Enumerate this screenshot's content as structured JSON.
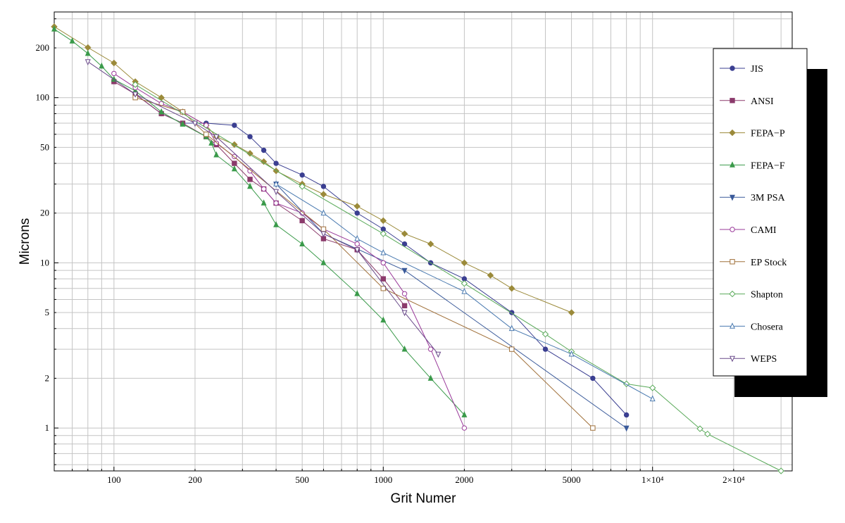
{
  "chart_data": {
    "type": "line",
    "title": "",
    "xlabel": "Grit Numer",
    "ylabel": "Microns",
    "x_scale": "log",
    "y_scale": "log",
    "xlim": [
      60,
      33000
    ],
    "ylim": [
      0.55,
      330
    ],
    "grid": true,
    "legend_position": "right",
    "x_tick_labels": [
      {
        "value": 100,
        "label": "100"
      },
      {
        "value": 200,
        "label": "200"
      },
      {
        "value": 500,
        "label": "500"
      },
      {
        "value": 1000,
        "label": "1000"
      },
      {
        "value": 2000,
        "label": "2000"
      },
      {
        "value": 5000,
        "label": "5000"
      },
      {
        "value": 10000,
        "label": "1×10⁴"
      },
      {
        "value": 20000,
        "label": "2×10⁴"
      }
    ],
    "y_tick_labels": [
      {
        "value": 1,
        "label": "1"
      },
      {
        "value": 2,
        "label": "2"
      },
      {
        "value": 5,
        "label": "5"
      },
      {
        "value": 10,
        "label": "10"
      },
      {
        "value": 20,
        "label": "20"
      },
      {
        "value": 50,
        "label": "50"
      },
      {
        "value": 100,
        "label": "100"
      },
      {
        "value": 200,
        "label": "200"
      }
    ],
    "series": [
      {
        "name": "JIS",
        "color": "#3b3f91",
        "marker": "circle-filled",
        "points": [
          [
            120,
            105
          ],
          [
            150,
            80
          ],
          [
            180,
            70
          ],
          [
            220,
            70
          ],
          [
            280,
            68
          ],
          [
            320,
            58
          ],
          [
            360,
            48
          ],
          [
            400,
            40
          ],
          [
            500,
            34
          ],
          [
            600,
            29
          ],
          [
            800,
            20
          ],
          [
            1000,
            16
          ],
          [
            1200,
            13
          ],
          [
            1500,
            10
          ],
          [
            2000,
            8
          ],
          [
            3000,
            5
          ],
          [
            4000,
            3
          ],
          [
            6000,
            2
          ],
          [
            8000,
            1.2
          ]
        ]
      },
      {
        "name": "ANSI",
        "color": "#8b3a6b",
        "marker": "square-filled",
        "points": [
          [
            100,
            125
          ],
          [
            120,
            105
          ],
          [
            150,
            80
          ],
          [
            180,
            70
          ],
          [
            220,
            58
          ],
          [
            240,
            52
          ],
          [
            280,
            40
          ],
          [
            320,
            32
          ],
          [
            360,
            28
          ],
          [
            400,
            23
          ],
          [
            500,
            18
          ],
          [
            600,
            14
          ],
          [
            800,
            12
          ],
          [
            1000,
            8
          ],
          [
            1200,
            5.5
          ]
        ]
      },
      {
        "name": "FEPA−P",
        "color": "#9b8a3a",
        "marker": "diamond-filled",
        "points": [
          [
            60,
            269
          ],
          [
            80,
            201
          ],
          [
            100,
            162
          ],
          [
            120,
            125
          ],
          [
            150,
            100
          ],
          [
            180,
            82
          ],
          [
            220,
            68
          ],
          [
            240,
            58
          ],
          [
            280,
            52
          ],
          [
            320,
            46
          ],
          [
            360,
            41
          ],
          [
            400,
            36
          ],
          [
            500,
            30
          ],
          [
            600,
            26
          ],
          [
            800,
            22
          ],
          [
            1000,
            18
          ],
          [
            1200,
            15
          ],
          [
            1500,
            13
          ],
          [
            2000,
            10
          ],
          [
            2500,
            8.4
          ],
          [
            3000,
            7
          ],
          [
            5000,
            5
          ]
        ]
      },
      {
        "name": "FEPA−F",
        "color": "#3a9a4a",
        "marker": "triangle-filled",
        "points": [
          [
            60,
            260
          ],
          [
            70,
            220
          ],
          [
            80,
            185
          ],
          [
            90,
            155
          ],
          [
            100,
            129
          ],
          [
            120,
            110
          ],
          [
            150,
            82
          ],
          [
            180,
            69
          ],
          [
            220,
            58
          ],
          [
            230,
            53
          ],
          [
            240,
            45
          ],
          [
            280,
            37
          ],
          [
            320,
            29
          ],
          [
            360,
            23
          ],
          [
            400,
            17
          ],
          [
            500,
            13
          ],
          [
            600,
            10
          ],
          [
            800,
            6.5
          ],
          [
            1000,
            4.5
          ],
          [
            1200,
            3
          ],
          [
            1500,
            2
          ],
          [
            2000,
            1.2
          ]
        ]
      },
      {
        "name": "3M PSA",
        "color": "#3a5a9a",
        "marker": "down-triangle-filled",
        "points": [
          [
            400,
            30
          ],
          [
            600,
            15
          ],
          [
            1200,
            9
          ],
          [
            8000,
            1
          ]
        ]
      },
      {
        "name": "CAMI",
        "color": "#9a3a9a",
        "marker": "circle-open",
        "points": [
          [
            100,
            140
          ],
          [
            120,
            115
          ],
          [
            150,
            92
          ],
          [
            180,
            82
          ],
          [
            220,
            68
          ],
          [
            240,
            53
          ],
          [
            280,
            44
          ],
          [
            320,
            36
          ],
          [
            360,
            28
          ],
          [
            400,
            23
          ],
          [
            500,
            20
          ],
          [
            600,
            16
          ],
          [
            800,
            13
          ],
          [
            1000,
            10
          ],
          [
            1200,
            6.5
          ],
          [
            1500,
            3
          ],
          [
            2000,
            1
          ]
        ]
      },
      {
        "name": "EP Stock",
        "color": "#a0703a",
        "marker": "square-open",
        "points": [
          [
            120,
            100
          ],
          [
            180,
            82
          ],
          [
            220,
            60
          ],
          [
            600,
            16
          ],
          [
            1000,
            7
          ],
          [
            3000,
            3
          ],
          [
            6000,
            1
          ]
        ]
      },
      {
        "name": "Shapton",
        "color": "#5aaa5a",
        "marker": "diamond-open",
        "points": [
          [
            120,
            120
          ],
          [
            500,
            29
          ],
          [
            1000,
            15
          ],
          [
            2000,
            7.5
          ],
          [
            4000,
            3.7
          ],
          [
            5000,
            2.9
          ],
          [
            8000,
            1.85
          ],
          [
            10000,
            1.75
          ],
          [
            15000,
            0.99
          ],
          [
            16000,
            0.92
          ],
          [
            30000,
            0.55
          ]
        ]
      },
      {
        "name": "Chosera",
        "color": "#4a7ab0",
        "marker": "triangle-open",
        "points": [
          [
            400,
            30
          ],
          [
            600,
            20
          ],
          [
            800,
            14
          ],
          [
            1000,
            11.5
          ],
          [
            2000,
            6.7
          ],
          [
            3000,
            4
          ],
          [
            5000,
            2.8
          ],
          [
            10000,
            1.5
          ]
        ]
      },
      {
        "name": "WEPS",
        "color": "#6a4a8a",
        "marker": "down-triangle-open",
        "points": [
          [
            80,
            165
          ],
          [
            120,
            105
          ],
          [
            200,
            70
          ],
          [
            240,
            58
          ],
          [
            400,
            27
          ],
          [
            600,
            15
          ],
          [
            800,
            12
          ],
          [
            1200,
            5
          ],
          [
            1600,
            2.8
          ]
        ]
      }
    ]
  }
}
